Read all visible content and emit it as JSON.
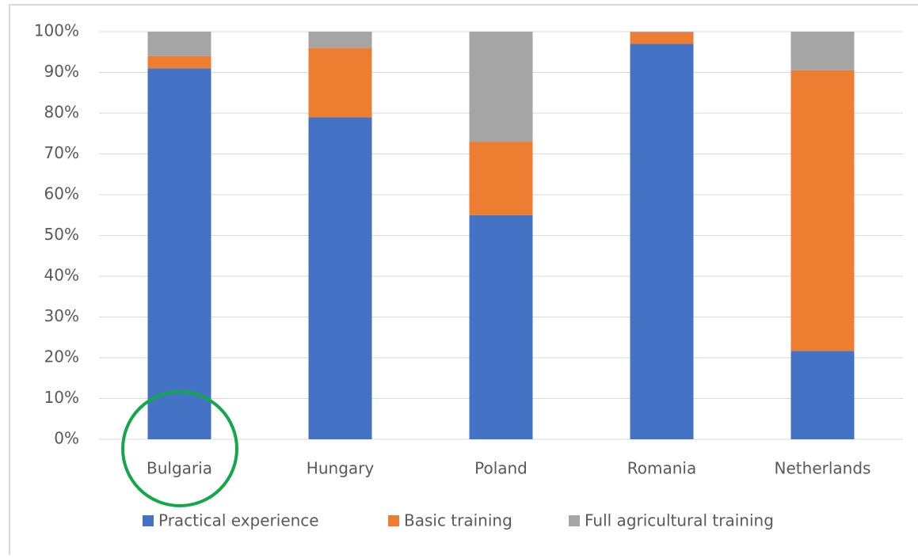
{
  "chart_data": {
    "type": "stacked_bar",
    "categories": [
      "Bulgaria",
      "Hungary",
      "Poland",
      "Romania",
      "Netherlands"
    ],
    "series": [
      {
        "name": "Practical experience",
        "color": "#4472c4",
        "values": [
          91,
          79,
          55,
          97,
          21.7
        ]
      },
      {
        "name": "Basic training",
        "color": "#ed7d31",
        "values": [
          3,
          17,
          18,
          2.8,
          68.8
        ]
      },
      {
        "name": "Full agricultural training",
        "color": "#a5a5a5",
        "values": [
          6,
          4,
          27,
          0.2,
          9.5
        ]
      }
    ],
    "ylim": [
      0,
      100
    ],
    "yticks": [
      {
        "value": 0,
        "label": "0%"
      },
      {
        "value": 10,
        "label": "10%"
      },
      {
        "value": 20,
        "label": "20%"
      },
      {
        "value": 30,
        "label": "30%"
      },
      {
        "value": 40,
        "label": "40%"
      },
      {
        "value": 50,
        "label": "50%"
      },
      {
        "value": 60,
        "label": "60%"
      },
      {
        "value": 70,
        "label": "70%"
      },
      {
        "value": 80,
        "label": "80%"
      },
      {
        "value": 90,
        "label": "90%"
      },
      {
        "value": 100,
        "label": "100%"
      }
    ],
    "grid": true,
    "legend": "bottom"
  }
}
